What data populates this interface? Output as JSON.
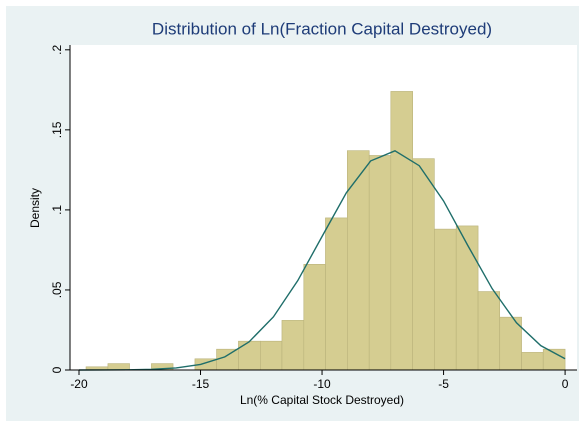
{
  "chart_data": {
    "type": "histogram",
    "title": "Distribution of Ln(Fraction Capital Destroyed)",
    "x_label": "Ln(% Capital Stock Destroyed)",
    "y_label": "Density",
    "bins": [
      -19.71,
      -18.81,
      -17.92,
      -17.02,
      -16.13,
      -15.23,
      -14.34,
      -13.44,
      -12.54,
      -11.65,
      -10.75,
      -9.86,
      -8.96,
      -8.06,
      -7.17,
      -6.27,
      -5.38,
      -4.48,
      -3.58,
      -2.69,
      -1.79,
      -0.9,
      0
    ],
    "values": [
      0.002,
      0.004,
      0,
      0.004,
      0,
      0.007,
      0.013,
      0.018,
      0.018,
      0.031,
      0.066,
      0.095,
      0.137,
      0.134,
      0.174,
      0.132,
      0.088,
      0.09,
      0.049,
      0.033,
      0.011,
      0.013
    ],
    "color": "#d5cd91",
    "curve": {
      "color": "#1f6e6a",
      "x": [
        -20,
        -19,
        -18,
        -17,
        -16,
        -15,
        -14,
        -13,
        -12,
        -11,
        -10,
        -9,
        -8,
        -7,
        -6,
        -5,
        -4,
        -3,
        -2,
        -1,
        0
      ],
      "values": [
        0,
        3e-05,
        0.0001,
        0.0004,
        0.0013,
        0.0035,
        0.0082,
        0.0176,
        0.0332,
        0.0558,
        0.0834,
        0.1107,
        0.1306,
        0.1369,
        0.1276,
        0.1056,
        0.0777,
        0.0508,
        0.0295,
        0.0152,
        0.007
      ]
    },
    "xlim": [
      -20.37,
      0.49
    ],
    "ylim": [
      0,
      0.203
    ],
    "xticks": [
      -20,
      -15,
      -10,
      -5,
      0
    ],
    "yticks": [
      0,
      {
        "value": 0.05,
        "label": ".05"
      },
      {
        "value": 0.1,
        "label": ".1"
      },
      {
        "value": 0.15,
        "label": ".15"
      },
      {
        "value": 0.2,
        "label": ".2"
      }
    ]
  }
}
